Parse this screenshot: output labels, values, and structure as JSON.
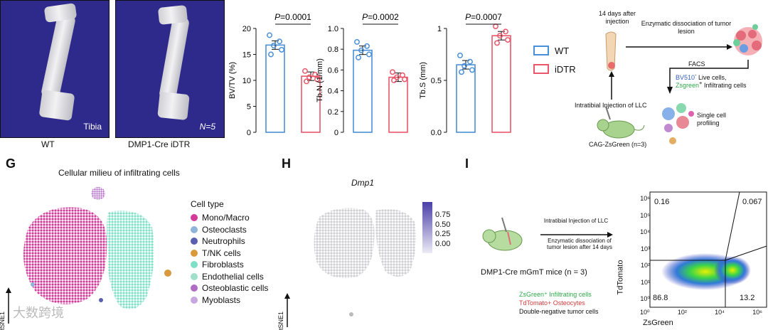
{
  "colors": {
    "wt": "#4a90d9",
    "idtr": "#e8576a",
    "panel_bg": "#2e2a8c"
  },
  "panelA": {
    "img1_label": "Tibia",
    "img2_label": "N=5",
    "cap1": "WT",
    "cap2": "DMP1-Cre iDTR"
  },
  "legend": {
    "wt": "WT",
    "idtr": "iDTR"
  },
  "chart_data": [
    {
      "type": "bar",
      "title": "P=0.0001",
      "ylabel": "BV/TV (%)",
      "ylim": [
        0,
        20
      ],
      "ticks": [
        "0",
        "5",
        "10",
        "15",
        "20"
      ],
      "categories": [
        "WT",
        "iDTR"
      ],
      "values": [
        16.8,
        10.8
      ],
      "points": [
        [
          18.7,
          17.5,
          16.7,
          15.9,
          15.0
        ],
        [
          11.8,
          11.1,
          10.6,
          10.2,
          9.8
        ]
      ]
    },
    {
      "type": "bar",
      "title": "P=0.0002",
      "ylabel": "Tb.N (1/mm)",
      "ylim": [
        0,
        1.0
      ],
      "ticks": [
        "0",
        "0.2",
        "0.4",
        "0.6",
        "0.8",
        "1.0"
      ],
      "categories": [
        "WT",
        "iDTR"
      ],
      "values": [
        0.79,
        0.53
      ],
      "points": [
        [
          0.87,
          0.83,
          0.79,
          0.75,
          0.72
        ],
        [
          0.58,
          0.55,
          0.53,
          0.51,
          0.5
        ]
      ]
    },
    {
      "type": "bar",
      "title": "P=0.0007",
      "ylabel": "Tb.S (mm)",
      "ylim": [
        0,
        1.0
      ],
      "ticks": [
        "0.0",
        "0.5",
        "1"
      ],
      "categories": [
        "WT",
        "iDTR"
      ],
      "values": [
        0.65,
        0.93
      ],
      "points": [
        [
          0.74,
          0.68,
          0.64,
          0.6,
          0.58
        ],
        [
          1.02,
          0.97,
          0.93,
          0.89,
          0.86
        ]
      ]
    }
  ],
  "workflow": {
    "step1": "14 days after injection",
    "step2": "Enzymatic dissociation of tumor lesion",
    "facs": "FACS",
    "bv510": "BV510",
    "live": "Live cells,",
    "zsgreen": "Zsgreen",
    "infil": "Infiltrating cells",
    "injection": "Intratibial Injection of LLC",
    "mouse": "CAG-ZsGreen (n=3)",
    "single1": "Single cell",
    "single2": "profiling"
  },
  "panelG": {
    "letter": "G",
    "title": "Cellular milieu of infiltrating cells",
    "legend_title": "Cell type",
    "types": [
      {
        "name": "Mono/Macro",
        "color": "#d43a9a"
      },
      {
        "name": "Osteoclasts",
        "color": "#8fb4d9"
      },
      {
        "name": "Neutrophils",
        "color": "#5a5fb0"
      },
      {
        "name": "T/NK cells",
        "color": "#d99a3c"
      },
      {
        "name": "Fibroblasts",
        "color": "#7fe0c8"
      },
      {
        "name": "Endothelial cells",
        "color": "#9ee0ca"
      },
      {
        "name": "Osteoblastic cells",
        "color": "#b06cc4"
      },
      {
        "name": "Myoblasts",
        "color": "#c8a7e0"
      }
    ],
    "axis": "tSNE1"
  },
  "panelH": {
    "letter": "H",
    "gene": "Dmp1",
    "scale": [
      "0.75",
      "0.50",
      "0.25",
      "0.00"
    ],
    "axis": "tSNE1"
  },
  "panelI": {
    "letter": "I",
    "arrow1": "Intratibial Injection of LLC",
    "arrow2": "Enzymatic dissociation of tumor lesion after 14 days",
    "mouse": "DMP1-Cre mGmT mice (n = 3)",
    "legend1": "ZsGreen⁺ Infiltrating cells",
    "legend2": "TdTomato+ Osteocytes",
    "legend3": "Double-negative tumor cells",
    "q_tl": "0.16",
    "q_tr": "0.067",
    "q_bl": "86.8",
    "q_br": "13.2",
    "yaxis": "TdTomato",
    "xaxis": "ZsGreen",
    "yticks": [
      "10⁶",
      "10⁵",
      "10⁴",
      "10³",
      "10²",
      "10¹",
      "10⁰"
    ],
    "xticks": [
      "10⁰",
      "10²",
      "10⁴",
      "10⁶"
    ]
  },
  "watermark": "大数跨境"
}
